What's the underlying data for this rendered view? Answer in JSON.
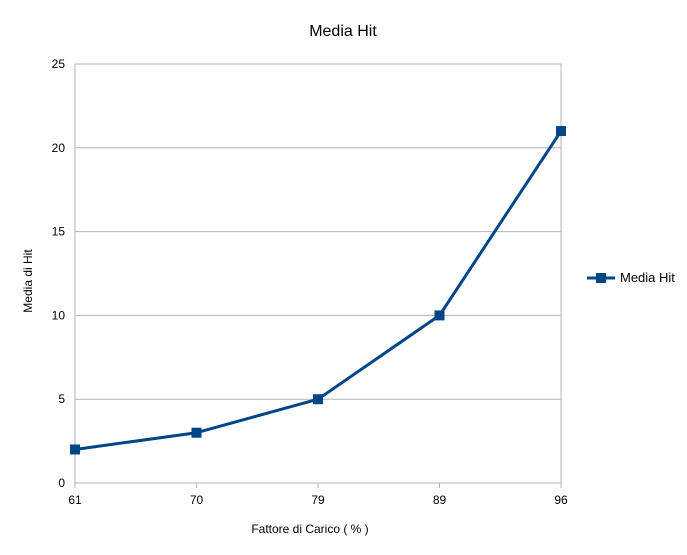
{
  "chart_data": {
    "type": "line",
    "title": "Media Hit",
    "xlabel": "Fattore di Carico ( % )",
    "ylabel": "Media di Hit",
    "categories": [
      "61",
      "70",
      "79",
      "89",
      "96"
    ],
    "series": [
      {
        "name": "Media Hit",
        "values": [
          2,
          3,
          5,
          10,
          21
        ],
        "color": "#004586",
        "marker": "square"
      }
    ],
    "ylim": [
      0,
      25
    ],
    "yticks": [
      "0",
      "5",
      "10",
      "15",
      "20",
      "25"
    ],
    "grid": true,
    "legend_position": "right"
  }
}
